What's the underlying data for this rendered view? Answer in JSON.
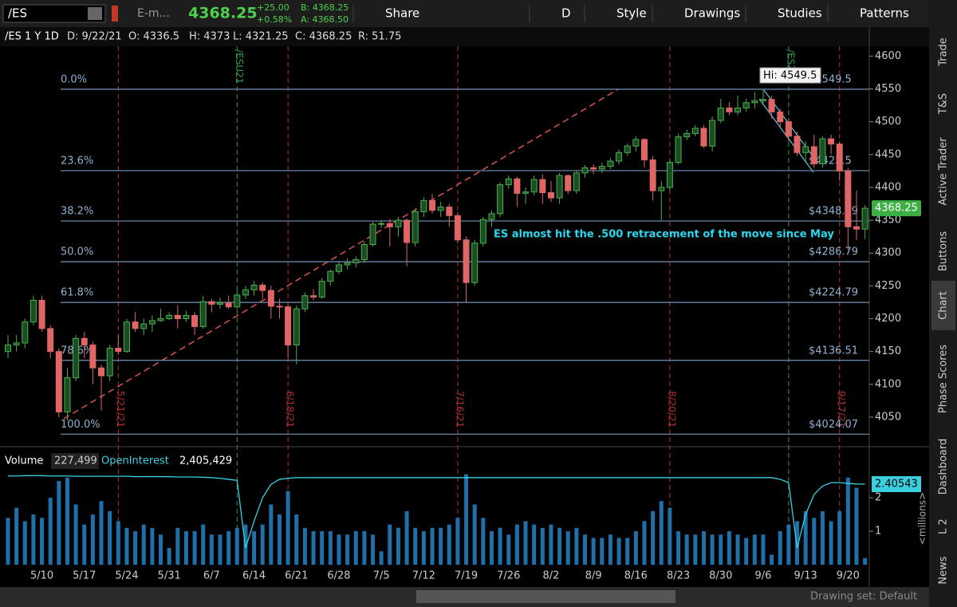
{
  "toolbar": {
    "symbol": "/ES",
    "description": "E-m...",
    "last": "4368.25",
    "change": "+25.00",
    "change_pct": "+0.58%",
    "bid": "B: 4368.25",
    "ask": "A: 4368.50",
    "buttons": [
      "Share",
      "D",
      "Style",
      "Drawings",
      "Studies",
      "Patterns"
    ]
  },
  "header": {
    "title": "/ES 1 Y 1D",
    "fields": [
      "D: 9/22/21",
      "O: 4336.5",
      "H: 4373",
      "L: 4321.25",
      "C: 4368.25",
      "R: 51.75"
    ]
  },
  "chart_data": {
    "type": "candlestick",
    "x": [
      "5/4",
      "5/5",
      "5/6",
      "5/7",
      "5/10",
      "5/11",
      "5/12",
      "5/13",
      "5/14",
      "5/17",
      "5/18",
      "5/19",
      "5/20",
      "5/21",
      "5/24",
      "5/25",
      "5/26",
      "5/27",
      "5/28",
      "5/31",
      "6/1",
      "6/2",
      "6/3",
      "6/4",
      "6/7",
      "6/8",
      "6/9",
      "6/10",
      "6/11",
      "6/14",
      "6/15",
      "6/16",
      "6/17",
      "6/18",
      "6/21",
      "6/22",
      "6/23",
      "6/24",
      "6/25",
      "6/28",
      "6/29",
      "6/30",
      "7/1",
      "7/2",
      "7/5",
      "7/6",
      "7/7",
      "7/8",
      "7/9",
      "7/12",
      "7/13",
      "7/14",
      "7/15",
      "7/16",
      "7/19",
      "7/20",
      "7/21",
      "7/22",
      "7/23",
      "7/26",
      "7/27",
      "7/28",
      "7/29",
      "7/30",
      "8/2",
      "8/3",
      "8/4",
      "8/5",
      "8/6",
      "8/9",
      "8/10",
      "8/11",
      "8/12",
      "8/13",
      "8/16",
      "8/17",
      "8/18",
      "8/19",
      "8/20",
      "8/23",
      "8/24",
      "8/25",
      "8/26",
      "8/27",
      "8/30",
      "8/31",
      "9/1",
      "9/2",
      "9/3",
      "9/6",
      "9/7",
      "9/8",
      "9/9",
      "9/10",
      "9/13",
      "9/14",
      "9/15",
      "9/16",
      "9/17",
      "9/20",
      "9/21",
      "9/22"
    ],
    "candles": [
      [
        4150,
        4175,
        4140,
        4160
      ],
      [
        4160,
        4175,
        4150,
        4163
      ],
      [
        4163,
        4200,
        4155,
        4195
      ],
      [
        4195,
        4235,
        4190,
        4228
      ],
      [
        4228,
        4235,
        4180,
        4185
      ],
      [
        4185,
        4190,
        4140,
        4150
      ],
      [
        4150,
        4155,
        4050,
        4058
      ],
      [
        4058,
        4125,
        4045,
        4110
      ],
      [
        4110,
        4175,
        4105,
        4170
      ],
      [
        4170,
        4180,
        4140,
        4160
      ],
      [
        4160,
        4165,
        4100,
        4125
      ],
      [
        4125,
        4130,
        4060,
        4113
      ],
      [
        4113,
        4160,
        4105,
        4155
      ],
      [
        4155,
        4175,
        4145,
        4150
      ],
      [
        4150,
        4200,
        4148,
        4195
      ],
      [
        4195,
        4210,
        4180,
        4185
      ],
      [
        4185,
        4200,
        4175,
        4192
      ],
      [
        4192,
        4205,
        4180,
        4197
      ],
      [
        4197,
        4215,
        4195,
        4200
      ],
      [
        4200,
        4210,
        4198,
        4205
      ],
      [
        4205,
        4220,
        4185,
        4200
      ],
      [
        4200,
        4212,
        4195,
        4205
      ],
      [
        4205,
        4210,
        4175,
        4188
      ],
      [
        4188,
        4235,
        4185,
        4226
      ],
      [
        4226,
        4230,
        4210,
        4222
      ],
      [
        4222,
        4232,
        4215,
        4224
      ],
      [
        4224,
        4235,
        4215,
        4218
      ],
      [
        4218,
        4245,
        4215,
        4236
      ],
      [
        4236,
        4250,
        4230,
        4244
      ],
      [
        4244,
        4258,
        4235,
        4251
      ],
      [
        4251,
        4255,
        4230,
        4243
      ],
      [
        4243,
        4250,
        4200,
        4219
      ],
      [
        4219,
        4230,
        4200,
        4218
      ],
      [
        4218,
        4222,
        4140,
        4160
      ],
      [
        4160,
        4220,
        4130,
        4215
      ],
      [
        4215,
        4240,
        4210,
        4235
      ],
      [
        4235,
        4245,
        4228,
        4233
      ],
      [
        4233,
        4262,
        4230,
        4257
      ],
      [
        4257,
        4275,
        4250,
        4272
      ],
      [
        4272,
        4288,
        4268,
        4282
      ],
      [
        4282,
        4292,
        4275,
        4285
      ],
      [
        4285,
        4295,
        4278,
        4290
      ],
      [
        4290,
        4318,
        4285,
        4313
      ],
      [
        4313,
        4348,
        4310,
        4344
      ],
      [
        4344,
        4350,
        4338,
        4345
      ],
      [
        4345,
        4352,
        4310,
        4340
      ],
      [
        4340,
        4355,
        4325,
        4350
      ],
      [
        4350,
        4352,
        4280,
        4316
      ],
      [
        4316,
        4368,
        4310,
        4363
      ],
      [
        4363,
        4385,
        4355,
        4380
      ],
      [
        4380,
        4390,
        4360,
        4365
      ],
      [
        4365,
        4378,
        4355,
        4370
      ],
      [
        4370,
        4375,
        4340,
        4357
      ],
      [
        4357,
        4362,
        4315,
        4320
      ],
      [
        4320,
        4325,
        4225,
        4255
      ],
      [
        4255,
        4320,
        4250,
        4315
      ],
      [
        4315,
        4355,
        4310,
        4351
      ],
      [
        4351,
        4365,
        4340,
        4360
      ],
      [
        4360,
        4408,
        4355,
        4404
      ],
      [
        4404,
        4418,
        4398,
        4413
      ],
      [
        4413,
        4416,
        4370,
        4391
      ],
      [
        4391,
        4400,
        4375,
        4393
      ],
      [
        4393,
        4418,
        4388,
        4412
      ],
      [
        4412,
        4420,
        4375,
        4392
      ],
      [
        4392,
        4410,
        4378,
        4384
      ],
      [
        4384,
        4422,
        4375,
        4418
      ],
      [
        4418,
        4420,
        4390,
        4395
      ],
      [
        4395,
        4426,
        4390,
        4422
      ],
      [
        4422,
        4434,
        4415,
        4430
      ],
      [
        4430,
        4435,
        4420,
        4428
      ],
      [
        4428,
        4438,
        4422,
        4432
      ],
      [
        4432,
        4445,
        4428,
        4440
      ],
      [
        4440,
        4458,
        4435,
        4453
      ],
      [
        4453,
        4467,
        4448,
        4463
      ],
      [
        4463,
        4478,
        4455,
        4473
      ],
      [
        4473,
        4475,
        4430,
        4442
      ],
      [
        4442,
        4448,
        4380,
        4395
      ],
      [
        4395,
        4410,
        4350,
        4400
      ],
      [
        4400,
        4442,
        4395,
        4438
      ],
      [
        4438,
        4482,
        4435,
        4477
      ],
      [
        4477,
        4488,
        4472,
        4482
      ],
      [
        4482,
        4495,
        4478,
        4490
      ],
      [
        4490,
        4495,
        4460,
        4463
      ],
      [
        4463,
        4508,
        4455,
        4502
      ],
      [
        4502,
        4535,
        4498,
        4521
      ],
      [
        4521,
        4530,
        4510,
        4515
      ],
      [
        4515,
        4540,
        4510,
        4521
      ],
      [
        4521,
        4535,
        4515,
        4529
      ],
      [
        4529,
        4545,
        4520,
        4532
      ],
      [
        4532,
        4549.5,
        4525,
        4534
      ],
      [
        4534,
        4540,
        4505,
        4515
      ],
      [
        4515,
        4520,
        4490,
        4500
      ],
      [
        4500,
        4505,
        4470,
        4478
      ],
      [
        4478,
        4485,
        4448,
        4453
      ],
      [
        4453,
        4470,
        4440,
        4462
      ],
      [
        4462,
        4480,
        4430,
        4436
      ],
      [
        4436,
        4478,
        4430,
        4474
      ],
      [
        4474,
        4480,
        4450,
        4466
      ],
      [
        4466,
        4470,
        4410,
        4425
      ],
      [
        4425,
        4430,
        4305,
        4340
      ],
      [
        4340,
        4395,
        4320,
        4336.5
      ],
      [
        4336.5,
        4373,
        4321.25,
        4368.25
      ]
    ],
    "up_color": "#4cae4c",
    "down_color": "#e06666",
    "ylim": [
      4005,
      4615
    ],
    "yticks": [
      4050,
      4100,
      4150,
      4200,
      4250,
      4300,
      4350,
      4400,
      4450,
      4500,
      4550,
      4600
    ],
    "last_price": 4368.25,
    "fib_levels": [
      {
        "level": "0.0%",
        "price": {
          "value": 4549.5,
          "label": "$4549.5"
        }
      },
      {
        "level": "23.6%",
        "price": {
          "value": 4425.5,
          "label": "$4425.5"
        }
      },
      {
        "level": "38.2%",
        "price": {
          "value": 4348.79,
          "label": "$4348.79"
        }
      },
      {
        "level": "50.0%",
        "price": {
          "value": 4286.79,
          "label": "$4286.79"
        }
      },
      {
        "level": "61.8%",
        "price": {
          "value": 4224.79,
          "label": "$4224.79"
        }
      },
      {
        "level": "78.6%",
        "price": {
          "value": 4136.51,
          "label": "$4136.51"
        }
      },
      {
        "level": "100.0%",
        "price": {
          "value": 4024.07,
          "label": "$4024.07"
        }
      }
    ],
    "high_label": "Hi: 4549.5",
    "annotation": "ES almost hit the .500 retracement of the move since May",
    "events": [
      {
        "date": "5/21",
        "label": "5/21/21",
        "color": "#b03030"
      },
      {
        "date": "6/10",
        "label": "/ESU21",
        "color": "#2e9a4a"
      },
      {
        "date": "6/18",
        "label": "6/18/21",
        "color": "#b03030"
      },
      {
        "date": "7/16",
        "label": "7/16/21",
        "color": "#b03030"
      },
      {
        "date": "8/20",
        "label": "8/20/21",
        "color": "#b03030"
      },
      {
        "date": "9/9",
        "label": "/ESZ21",
        "color": "#2e9a4a"
      },
      {
        "date": "9/17",
        "label": "9/17/21",
        "color": "#b03030"
      }
    ],
    "x_ticks": [
      "5/10",
      "5/17",
      "5/24",
      "5/31",
      "6/7",
      "6/14",
      "6/21",
      "6/28",
      "7/5",
      "7/12",
      "7/19",
      "7/26",
      "8/2",
      "8/9",
      "8/16",
      "8/23",
      "8/30",
      "9/6",
      "9/13",
      "9/20"
    ],
    "volume": {
      "title": "Volume",
      "value": "227,499",
      "oi_title": "OpenInterest",
      "oi_value": "2,405,429",
      "axis_label": "<millions>",
      "color": "#1f6fa8",
      "oi_color": "#3ad0e0",
      "ylim": [
        0,
        2.81
      ],
      "yticks": [
        1,
        2
      ],
      "oi_last": 2.40543,
      "values": [
        1.4,
        1.7,
        1.3,
        1.5,
        1.4,
        2.0,
        2.5,
        2.6,
        1.8,
        1.2,
        1.5,
        1.9,
        1.6,
        1.3,
        1.1,
        1.0,
        1.2,
        1.1,
        0.9,
        0.5,
        1.1,
        1.0,
        1.0,
        1.2,
        0.9,
        0.9,
        1.0,
        1.1,
        1.2,
        1.0,
        1.2,
        1.8,
        1.5,
        2.2,
        1.5,
        1.1,
        1.0,
        1.0,
        1.0,
        0.9,
        0.9,
        1.0,
        1.0,
        0.9,
        0.4,
        1.2,
        1.1,
        1.6,
        1.1,
        1.0,
        1.1,
        1.1,
        1.2,
        1.4,
        2.7,
        1.8,
        1.4,
        1.0,
        1.1,
        0.9,
        1.2,
        1.3,
        1.2,
        1.1,
        1.2,
        1.1,
        1.0,
        1.1,
        0.9,
        0.8,
        0.8,
        0.9,
        0.8,
        0.8,
        1.0,
        1.3,
        1.6,
        1.9,
        1.7,
        1.0,
        0.9,
        0.9,
        1.0,
        0.9,
        0.9,
        1.0,
        0.9,
        0.8,
        0.9,
        0.9,
        0.3,
        1.0,
        1.2,
        1.3,
        1.6,
        1.4,
        1.6,
        1.3,
        1.6,
        2.6,
        2.3,
        0.2
      ],
      "open_interest": [
        2.65,
        2.65,
        2.66,
        2.66,
        2.66,
        2.65,
        2.65,
        2.65,
        2.64,
        2.64,
        2.64,
        2.64,
        2.64,
        2.64,
        2.64,
        2.63,
        2.63,
        2.63,
        2.63,
        2.63,
        2.62,
        2.62,
        2.62,
        2.61,
        2.6,
        2.58,
        2.55,
        2.52,
        0.5,
        1.3,
        2.0,
        2.4,
        2.55,
        2.58,
        2.6,
        2.6,
        2.6,
        2.6,
        2.6,
        2.6,
        2.6,
        2.6,
        2.6,
        2.6,
        2.6,
        2.6,
        2.6,
        2.6,
        2.6,
        2.6,
        2.6,
        2.6,
        2.6,
        2.6,
        2.6,
        2.6,
        2.6,
        2.6,
        2.6,
        2.6,
        2.6,
        2.6,
        2.6,
        2.6,
        2.6,
        2.6,
        2.6,
        2.6,
        2.6,
        2.6,
        2.6,
        2.6,
        2.6,
        2.6,
        2.6,
        2.6,
        2.6,
        2.6,
        2.6,
        2.6,
        2.6,
        2.6,
        2.6,
        2.6,
        2.6,
        2.6,
        2.6,
        2.6,
        2.6,
        2.6,
        2.6,
        2.55,
        2.45,
        0.5,
        1.5,
        2.1,
        2.35,
        2.45,
        2.45,
        2.43,
        2.41,
        2.40543
      ]
    }
  },
  "sidebar": {
    "tabs": [
      "Trade",
      "T&S",
      "Active Trader",
      "Buttons",
      "Chart",
      "Phase Scores",
      "Dashboard",
      "L 2",
      "News"
    ]
  },
  "footer": {
    "drawing_set": "Drawing set: Default"
  }
}
